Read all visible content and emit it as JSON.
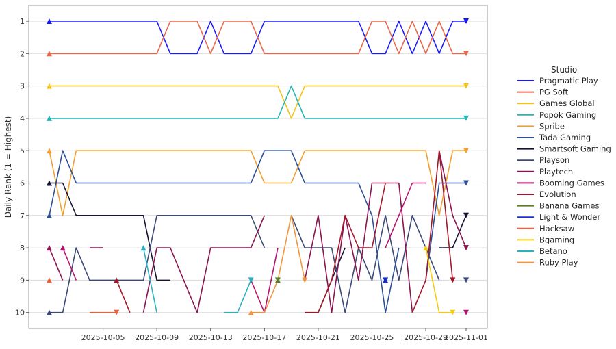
{
  "chart_data": {
    "type": "line",
    "title": "",
    "xlabel": "",
    "ylabel": "Daily Rank (1 = Highest)",
    "x_ticks": [
      "2025-10-05",
      "2025-10-09",
      "2025-10-13",
      "2025-10-17",
      "2025-10-21",
      "2025-10-25",
      "2025-10-29",
      "2025-11-01"
    ],
    "x_range": [
      "2025-10-01",
      "2025-11-01"
    ],
    "y_ticks": [
      1,
      2,
      3,
      4,
      5,
      6,
      7,
      8,
      9,
      10
    ],
    "ylim": [
      10.5,
      0.5
    ],
    "grid": "horizontal",
    "legend": {
      "title": "Studio",
      "placement": "right"
    },
    "series": [
      {
        "name": "Pragmatic Play",
        "color": "#1a1aff",
        "points": [
          [
            "2025-10-01",
            1
          ],
          [
            "2025-10-02",
            1
          ],
          [
            "2025-10-03",
            1
          ],
          [
            "2025-10-04",
            1
          ],
          [
            "2025-10-05",
            1
          ],
          [
            "2025-10-06",
            1
          ],
          [
            "2025-10-07",
            1
          ],
          [
            "2025-10-08",
            1
          ],
          [
            "2025-10-09",
            1
          ],
          [
            "2025-10-10",
            2
          ],
          [
            "2025-10-11",
            2
          ],
          [
            "2025-10-12",
            2
          ],
          [
            "2025-10-13",
            1
          ],
          [
            "2025-10-14",
            2
          ],
          [
            "2025-10-15",
            2
          ],
          [
            "2025-10-16",
            2
          ],
          [
            "2025-10-17",
            1
          ],
          [
            "2025-10-18",
            1
          ],
          [
            "2025-10-19",
            1
          ],
          [
            "2025-10-20",
            1
          ],
          [
            "2025-10-21",
            1
          ],
          [
            "2025-10-22",
            1
          ],
          [
            "2025-10-23",
            1
          ],
          [
            "2025-10-24",
            1
          ],
          [
            "2025-10-25",
            2
          ],
          [
            "2025-10-26",
            2
          ],
          [
            "2025-10-27",
            1
          ],
          [
            "2025-10-28",
            2
          ],
          [
            "2025-10-29",
            1
          ],
          [
            "2025-10-30",
            2
          ],
          [
            "2025-10-31",
            1
          ],
          [
            "2025-11-01",
            1
          ]
        ]
      },
      {
        "name": "PG Soft",
        "color": "#e8664a",
        "points": [
          [
            "2025-10-01",
            2
          ],
          [
            "2025-10-02",
            2
          ],
          [
            "2025-10-03",
            2
          ],
          [
            "2025-10-04",
            2
          ],
          [
            "2025-10-05",
            2
          ],
          [
            "2025-10-06",
            2
          ],
          [
            "2025-10-07",
            2
          ],
          [
            "2025-10-08",
            2
          ],
          [
            "2025-10-09",
            2
          ],
          [
            "2025-10-10",
            1
          ],
          [
            "2025-10-11",
            1
          ],
          [
            "2025-10-12",
            1
          ],
          [
            "2025-10-13",
            2
          ],
          [
            "2025-10-14",
            1
          ],
          [
            "2025-10-15",
            1
          ],
          [
            "2025-10-16",
            1
          ],
          [
            "2025-10-17",
            2
          ],
          [
            "2025-10-18",
            2
          ],
          [
            "2025-10-19",
            2
          ],
          [
            "2025-10-20",
            2
          ],
          [
            "2025-10-21",
            2
          ],
          [
            "2025-10-22",
            2
          ],
          [
            "2025-10-23",
            2
          ],
          [
            "2025-10-24",
            2
          ],
          [
            "2025-10-25",
            1
          ],
          [
            "2025-10-26",
            1
          ],
          [
            "2025-10-27",
            2
          ],
          [
            "2025-10-28",
            1
          ],
          [
            "2025-10-29",
            2
          ],
          [
            "2025-10-30",
            1
          ],
          [
            "2025-10-31",
            2
          ],
          [
            "2025-11-01",
            2
          ]
        ]
      },
      {
        "name": "Games Global",
        "color": "#f2c31b",
        "points": [
          [
            "2025-10-01",
            3
          ],
          [
            "2025-10-05",
            3
          ],
          [
            "2025-10-10",
            3
          ],
          [
            "2025-10-15",
            3
          ],
          [
            "2025-10-17",
            3
          ],
          [
            "2025-10-18",
            3
          ],
          [
            "2025-10-19",
            4
          ],
          [
            "2025-10-20",
            3
          ],
          [
            "2025-10-25",
            3
          ],
          [
            "2025-10-30",
            3
          ],
          [
            "2025-11-01",
            3
          ]
        ]
      },
      {
        "name": "Popok Gaming",
        "color": "#26b5b5",
        "points": [
          [
            "2025-10-01",
            4
          ],
          [
            "2025-10-05",
            4
          ],
          [
            "2025-10-10",
            4
          ],
          [
            "2025-10-15",
            4
          ],
          [
            "2025-10-17",
            4
          ],
          [
            "2025-10-18",
            4
          ],
          [
            "2025-10-19",
            3
          ],
          [
            "2025-10-20",
            4
          ],
          [
            "2025-10-25",
            4
          ],
          [
            "2025-10-30",
            4
          ],
          [
            "2025-11-01",
            4
          ]
        ]
      },
      {
        "name": "Spribe",
        "color": "#f0a030",
        "points": [
          [
            "2025-10-01",
            5
          ],
          [
            "2025-10-02",
            7
          ],
          [
            "2025-10-03",
            5
          ],
          [
            "2025-10-04",
            5
          ],
          [
            "2025-10-10",
            5
          ],
          [
            "2025-10-15",
            5
          ],
          [
            "2025-10-16",
            5
          ],
          [
            "2025-10-17",
            6
          ],
          [
            "2025-10-18",
            6
          ],
          [
            "2025-10-19",
            6
          ],
          [
            "2025-10-20",
            5
          ],
          [
            "2025-10-25",
            5
          ],
          [
            "2025-10-29",
            5
          ],
          [
            "2025-10-30",
            7
          ],
          [
            "2025-10-31",
            5
          ],
          [
            "2025-11-01",
            5
          ]
        ]
      },
      {
        "name": "Tada Gaming",
        "color": "#2b4f96",
        "points": [
          [
            "2025-10-01",
            7
          ],
          [
            "2025-10-02",
            5
          ],
          [
            "2025-10-03",
            6
          ],
          [
            "2025-10-04",
            6
          ],
          [
            "2025-10-10",
            6
          ],
          [
            "2025-10-16",
            6
          ],
          [
            "2025-10-17",
            5
          ],
          [
            "2025-10-18",
            5
          ],
          [
            "2025-10-19",
            5
          ],
          [
            "2025-10-20",
            6
          ],
          [
            "2025-10-21",
            6
          ],
          [
            "2025-10-22",
            6
          ],
          [
            "2025-10-23",
            6
          ],
          [
            "2025-10-24",
            6
          ],
          [
            "2025-10-25",
            7
          ],
          [
            "2025-10-26",
            10
          ],
          [
            "2025-10-27",
            8
          ],
          [
            "2025-10-28",
            null
          ],
          [
            "2025-10-29",
            9
          ],
          [
            "2025-10-30",
            6
          ],
          [
            "2025-11-01",
            6
          ]
        ]
      },
      {
        "name": "Smartsoft Gaming",
        "color": "#141433",
        "points": [
          [
            "2025-10-01",
            6
          ],
          [
            "2025-10-02",
            6
          ],
          [
            "2025-10-03",
            7
          ],
          [
            "2025-10-04",
            7
          ],
          [
            "2025-10-05",
            7
          ],
          [
            "2025-10-06",
            7
          ],
          [
            "2025-10-07",
            7
          ],
          [
            "2025-10-08",
            7
          ],
          [
            "2025-10-09",
            9
          ],
          [
            "2025-10-10",
            9
          ],
          [
            "2025-10-11",
            null
          ],
          [
            "2025-10-21",
            10
          ],
          [
            "2025-10-22",
            9
          ],
          [
            "2025-10-23",
            8
          ],
          [
            "2025-10-24",
            null
          ],
          [
            "2025-10-30",
            8
          ],
          [
            "2025-10-31",
            8
          ],
          [
            "2025-11-01",
            7
          ]
        ]
      },
      {
        "name": "Playson",
        "color": "#3c4a78",
        "points": [
          [
            "2025-10-01",
            10
          ],
          [
            "2025-10-02",
            10
          ],
          [
            "2025-10-03",
            8
          ],
          [
            "2025-10-04",
            9
          ],
          [
            "2025-10-05",
            9
          ],
          [
            "2025-10-06",
            9
          ],
          [
            "2025-10-07",
            9
          ],
          [
            "2025-10-08",
            9
          ],
          [
            "2025-10-09",
            7
          ],
          [
            "2025-10-10",
            7
          ],
          [
            "2025-10-15",
            7
          ],
          [
            "2025-10-16",
            7
          ],
          [
            "2025-10-17",
            8
          ],
          [
            "2025-10-18",
            null
          ],
          [
            "2025-10-19",
            7
          ],
          [
            "2025-10-20",
            8
          ],
          [
            "2025-10-21",
            8
          ],
          [
            "2025-10-22",
            8
          ],
          [
            "2025-10-23",
            10
          ],
          [
            "2025-10-24",
            8
          ],
          [
            "2025-10-25",
            9
          ],
          [
            "2025-10-26",
            7
          ],
          [
            "2025-10-27",
            9
          ],
          [
            "2025-10-28",
            7
          ],
          [
            "2025-10-29",
            8
          ],
          [
            "2025-10-30",
            9
          ],
          [
            "2025-10-31",
            null
          ],
          [
            "2025-11-01",
            9
          ]
        ]
      },
      {
        "name": "Playtech",
        "color": "#8a1450",
        "points": [
          [
            "2025-10-01",
            8
          ],
          [
            "2025-10-02",
            9
          ],
          [
            "2025-10-03",
            null
          ],
          [
            "2025-10-04",
            8
          ],
          [
            "2025-10-05",
            8
          ],
          [
            "2025-10-06",
            null
          ],
          [
            "2025-10-08",
            10
          ],
          [
            "2025-10-09",
            8
          ],
          [
            "2025-10-10",
            8
          ],
          [
            "2025-10-11",
            9
          ],
          [
            "2025-10-12",
            10
          ],
          [
            "2025-10-13",
            8
          ],
          [
            "2025-10-14",
            8
          ],
          [
            "2025-10-15",
            8
          ],
          [
            "2025-10-16",
            8
          ],
          [
            "2025-10-17",
            7
          ],
          [
            "2025-10-18",
            null
          ],
          [
            "2025-10-20",
            9
          ],
          [
            "2025-10-21",
            7
          ],
          [
            "2025-10-22",
            10
          ],
          [
            "2025-10-23",
            7
          ],
          [
            "2025-10-24",
            9
          ],
          [
            "2025-10-25",
            6
          ],
          [
            "2025-10-26",
            6
          ],
          [
            "2025-10-27",
            6
          ],
          [
            "2025-10-28",
            10
          ],
          [
            "2025-10-29",
            null
          ],
          [
            "2025-10-30",
            5
          ],
          [
            "2025-10-31",
            7
          ],
          [
            "2025-11-01",
            8
          ]
        ]
      },
      {
        "name": "Booming Games",
        "color": "#b5146e",
        "points": [
          [
            "2025-10-01",
            null
          ],
          [
            "2025-10-02",
            8
          ],
          [
            "2025-10-03",
            9
          ],
          [
            "2025-10-04",
            null
          ],
          [
            "2025-10-16",
            9
          ],
          [
            "2025-10-17",
            10
          ],
          [
            "2025-10-18",
            8
          ],
          [
            "2025-10-19",
            null
          ],
          [
            "2025-10-26",
            8
          ],
          [
            "2025-10-27",
            7
          ],
          [
            "2025-10-28",
            6
          ],
          [
            "2025-10-29",
            6
          ],
          [
            "2025-10-30",
            null
          ],
          [
            "2025-11-01",
            10
          ]
        ]
      },
      {
        "name": "Evolution",
        "color": "#a3162a",
        "points": [
          [
            "2025-10-06",
            9
          ],
          [
            "2025-10-07",
            10
          ],
          [
            "2025-10-08",
            null
          ],
          [
            "2025-10-20",
            10
          ],
          [
            "2025-10-21",
            10
          ],
          [
            "2025-10-22",
            9
          ],
          [
            "2025-10-23",
            7
          ],
          [
            "2025-10-24",
            8
          ],
          [
            "2025-10-25",
            8
          ],
          [
            "2025-10-26",
            6
          ],
          [
            "2025-10-27",
            null
          ],
          [
            "2025-10-28",
            10
          ],
          [
            "2025-10-29",
            9
          ],
          [
            "2025-10-30",
            5
          ],
          [
            "2025-10-31",
            9
          ],
          [
            "2025-11-01",
            null
          ]
        ]
      },
      {
        "name": "Banana Games",
        "color": "#5e7d2a",
        "points": [
          [
            "2025-10-18",
            9
          ]
        ]
      },
      {
        "name": "Light & Wonder",
        "color": "#1a33cc",
        "points": [
          [
            "2025-10-26",
            9
          ]
        ]
      },
      {
        "name": "Hacksaw",
        "color": "#f0603c",
        "points": [
          [
            "2025-10-01",
            9
          ],
          [
            "2025-10-03",
            null
          ],
          [
            "2025-10-04",
            10
          ],
          [
            "2025-10-05",
            10
          ],
          [
            "2025-10-06",
            10
          ],
          [
            "2025-10-07",
            null
          ],
          [
            "2025-10-13",
            null
          ]
        ]
      },
      {
        "name": "Bgaming",
        "color": "#f5cc10",
        "points": [
          [
            "2025-10-29",
            8
          ],
          [
            "2025-10-30",
            10
          ],
          [
            "2025-10-31",
            10
          ]
        ]
      },
      {
        "name": "Betano",
        "color": "#2ab0c0",
        "points": [
          [
            "2025-10-08",
            8
          ],
          [
            "2025-10-09",
            10
          ],
          [
            "2025-10-10",
            null
          ],
          [
            "2025-10-14",
            10
          ],
          [
            "2025-10-15",
            10
          ],
          [
            "2025-10-16",
            9
          ]
        ]
      },
      {
        "name": "Ruby Play",
        "color": "#f09640",
        "points": [
          [
            "2025-10-16",
            10
          ],
          [
            "2025-10-17",
            10
          ],
          [
            "2025-10-18",
            9
          ],
          [
            "2025-10-19",
            7
          ],
          [
            "2025-10-20",
            9
          ]
        ]
      }
    ]
  }
}
